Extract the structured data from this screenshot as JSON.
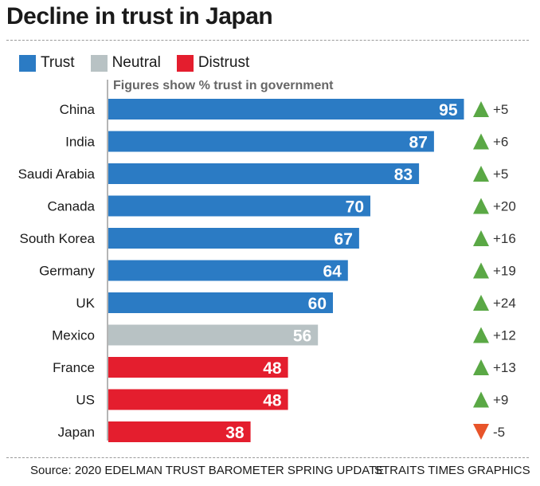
{
  "title": "Decline in trust in Japan",
  "legend": [
    {
      "label": "Trust",
      "color": "#2b7bc4"
    },
    {
      "label": "Neutral",
      "color": "#b8c2c4"
    },
    {
      "label": "Distrust",
      "color": "#e41e2e"
    }
  ],
  "subtitle": "Figures show % trust in government",
  "chart_data": {
    "type": "bar",
    "orientation": "horizontal",
    "title": "Decline in trust in Japan",
    "subtitle": "Figures show % trust in government",
    "categories": [
      "China",
      "India",
      "Saudi Arabia",
      "Canada",
      "South Korea",
      "Germany",
      "UK",
      "Mexico",
      "France",
      "US",
      "Japan"
    ],
    "values": [
      95,
      87,
      83,
      70,
      67,
      64,
      60,
      56,
      48,
      48,
      38
    ],
    "group": [
      "Trust",
      "Trust",
      "Trust",
      "Trust",
      "Trust",
      "Trust",
      "Trust",
      "Neutral",
      "Distrust",
      "Distrust",
      "Distrust"
    ],
    "changes": [
      "+5",
      "+6",
      "+5",
      "+20",
      "+16",
      "+19",
      "+24",
      "+12",
      "+13",
      "+9",
      "-5"
    ],
    "change_direction": [
      "up",
      "up",
      "up",
      "up",
      "up",
      "up",
      "up",
      "up",
      "up",
      "up",
      "down"
    ],
    "xlim": [
      0,
      100
    ],
    "colors": {
      "Trust": "#2b7bc4",
      "Neutral": "#b8c2c4",
      "Distrust": "#e41e2e",
      "up": "#5aa845",
      "down": "#e8542a"
    }
  },
  "footer": {
    "source": "Source: 2020 EDELMAN TRUST BAROMETER SPRING UPDATE",
    "credit": "STRAITS TIMES GRAPHICS"
  }
}
